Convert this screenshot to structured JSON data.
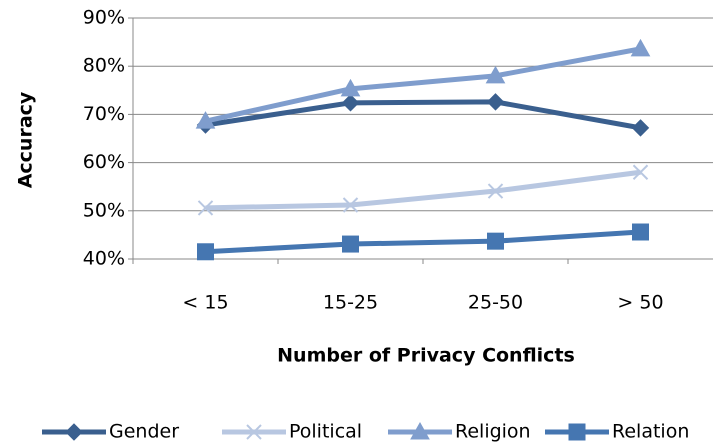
{
  "chart_data": {
    "type": "line",
    "x_label": "Number of Privacy Conflicts",
    "y_label": "Accuracy",
    "categories": [
      "< 15",
      "15-25",
      "25-50",
      "> 50"
    ],
    "series": [
      {
        "name": "Gender",
        "color": "#3a5f8e",
        "marker": "diamond",
        "values": [
          67.8,
          72.4,
          72.6,
          67.2
        ]
      },
      {
        "name": "Political",
        "color": "#b8c7e1",
        "marker": "x",
        "values": [
          50.6,
          51.2,
          54.1,
          58.0
        ]
      },
      {
        "name": "Religion",
        "color": "#7f9dcd",
        "marker": "triangle",
        "values": [
          68.6,
          75.3,
          78.0,
          83.6
        ]
      },
      {
        "name": "Relation",
        "color": "#4576b1",
        "marker": "square",
        "values": [
          41.5,
          43.1,
          43.7,
          45.6
        ]
      }
    ],
    "ylim": [
      40,
      90
    ],
    "yticks": [
      {
        "value": 40,
        "label": "40%"
      },
      {
        "value": 50,
        "label": "50%"
      },
      {
        "value": 60,
        "label": "60%"
      },
      {
        "value": 70,
        "label": "70%"
      },
      {
        "value": 80,
        "label": "80%"
      },
      {
        "value": 90,
        "label": "90%"
      }
    ],
    "grid": true,
    "legend": "bottom"
  }
}
